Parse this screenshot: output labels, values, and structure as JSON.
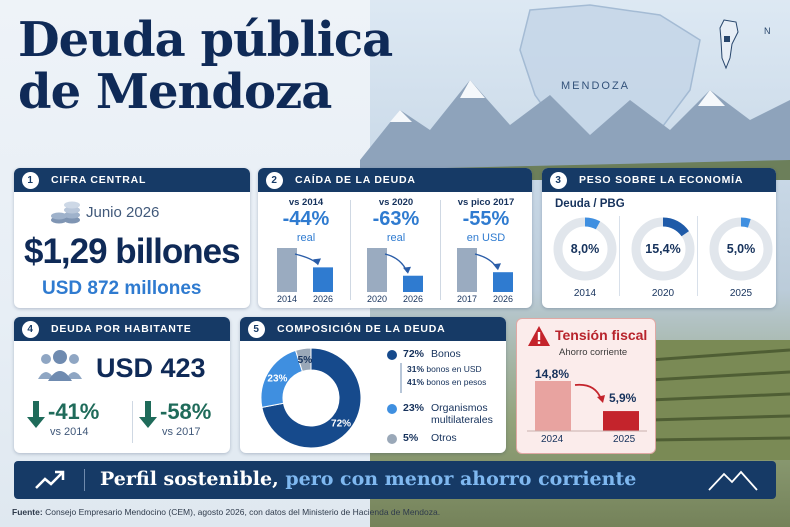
{
  "title_line1": "Deuda pública",
  "title_line2": "de Mendoza",
  "map_label": "MENDOZA",
  "compass_label": "N",
  "card1": {
    "number": "1",
    "header": "CIFRA CENTRAL",
    "date": "Junio 2026",
    "amount": "$1,29 billones",
    "usd": "USD 872 millones"
  },
  "card2": {
    "number": "2",
    "header": "CAÍDA DE LA DEUDA",
    "columns": [
      {
        "vs": "vs 2014",
        "pct": "-44%",
        "unit": "real",
        "from_year": "2014",
        "to_year": "2026",
        "from_value": 1.0,
        "to_value": 0.56
      },
      {
        "vs": "vs 2020",
        "pct": "-63%",
        "unit": "real",
        "from_year": "2020",
        "to_year": "2026",
        "from_value": 1.0,
        "to_value": 0.37
      },
      {
        "vs": "vs pico 2017",
        "pct": "-55%",
        "unit": "en USD",
        "from_year": "2017",
        "to_year": "2026",
        "from_value": 1.0,
        "to_value": 0.45
      }
    ],
    "colors": {
      "before": "#9aabc0",
      "after": "#2f7bd0"
    }
  },
  "card3": {
    "number": "3",
    "header": "PESO SOBRE LA ECONOMÍA",
    "subtitle": "Deuda / PBG",
    "items": [
      {
        "value": "8,0%",
        "year": "2014",
        "share": 0.08
      },
      {
        "value": "15,4%",
        "year": "2020",
        "share": 0.154
      },
      {
        "value": "5,0%",
        "year": "2025",
        "share": 0.05
      }
    ]
  },
  "card4": {
    "number": "4",
    "header": "DEUDA POR HABITANTE",
    "amount": "USD 423",
    "drops": [
      {
        "pct": "-41%",
        "vs": "vs 2014"
      },
      {
        "pct": "-58%",
        "vs": "vs 2017"
      }
    ]
  },
  "card5": {
    "number": "5",
    "header": "COMPOSICIÓN DE LA DEUDA",
    "slices": [
      {
        "pct": "72%",
        "value": 72,
        "label": "Bonos",
        "color": "#164a8c"
      },
      {
        "pct": "23%",
        "value": 23,
        "label": "Organismos multilaterales",
        "color": "#3f8fe0"
      },
      {
        "pct": "5%",
        "value": 5,
        "label": "Otros",
        "color": "#9aa8b8"
      }
    ],
    "bond_split": [
      {
        "pct": "31%",
        "label": "bonos en USD"
      },
      {
        "pct": "41%",
        "label": "bonos en pesos"
      }
    ],
    "legend_line2": "multilaterales",
    "legend_line1": "Organismos"
  },
  "card6": {
    "title": "Tensión fiscal",
    "subtitle": "Ahorro corriente",
    "bars": [
      {
        "year": "2024",
        "label": "14,8%",
        "value": 14.8,
        "color": "#e8a3a0"
      },
      {
        "year": "2025",
        "label": "5,9%",
        "value": 5.9,
        "color": "#c4242c"
      }
    ]
  },
  "banner": {
    "part1": "Perfil sostenible,",
    "part2": "pero con menor ahorro corriente"
  },
  "footer": {
    "label": "Fuente:",
    "text": "Consejo Empresario Mendocino (CEM), agosto 2026, con datos del Ministerio de Hacienda de Mendoza."
  }
}
